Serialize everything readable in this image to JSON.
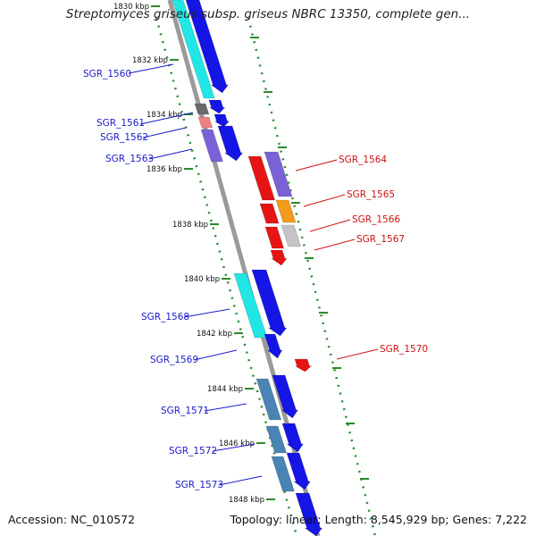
{
  "title": "Streptomyces griseus subsp. griseus NBRC 13350, complete gen...",
  "footer": {
    "accession": "Accession: NC_010572",
    "topology": "Topology: linear; Length: 8,545,929 bp; Genes: 7,222"
  },
  "colors": {
    "backbone": "#8a8a8a",
    "dots": "#2a8a2a",
    "left_label": "#1a1acc",
    "right_label": "#cc1111",
    "blue": "#1515e6",
    "cyan": "#22e6e6",
    "red": "#e61414",
    "purple": "#7a62d6",
    "orange": "#f59a1a",
    "grey_light": "#c4c4c4",
    "grey_dark": "#6a6a6a",
    "pink": "#f08080",
    "steel": "#4a84b4"
  },
  "kbp_labels": [
    "1830 kbp",
    "1832 kbp",
    "1834 kbp",
    "1836 kbp",
    "1838 kbp",
    "1840 kbp",
    "1842 kbp",
    "1844 kbp",
    "1846 kbp",
    "1848 kbp"
  ],
  "left_genes": [
    "SGR_1560",
    "SGR_1561",
    "SGR_1562",
    "SGR_1563",
    "SGR_1568",
    "SGR_1569",
    "SGR_1571",
    "SGR_1572",
    "SGR_1573"
  ],
  "right_genes": [
    "SGR_1564",
    "SGR_1565",
    "SGR_1566",
    "SGR_1567",
    "SGR_1570"
  ]
}
